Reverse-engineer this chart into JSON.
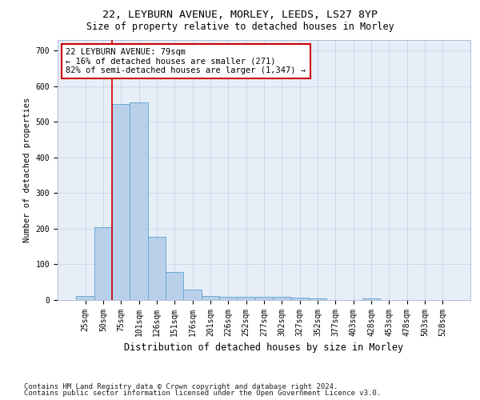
{
  "title1": "22, LEYBURN AVENUE, MORLEY, LEEDS, LS27 8YP",
  "title2": "Size of property relative to detached houses in Morley",
  "xlabel": "Distribution of detached houses by size in Morley",
  "ylabel": "Number of detached properties",
  "categories": [
    "25sqm",
    "50sqm",
    "75sqm",
    "101sqm",
    "126sqm",
    "151sqm",
    "176sqm",
    "201sqm",
    "226sqm",
    "252sqm",
    "277sqm",
    "302sqm",
    "327sqm",
    "352sqm",
    "377sqm",
    "403sqm",
    "428sqm",
    "453sqm",
    "478sqm",
    "503sqm",
    "528sqm"
  ],
  "values": [
    12,
    205,
    550,
    555,
    178,
    78,
    30,
    12,
    10,
    8,
    10,
    10,
    7,
    5,
    0,
    0,
    5,
    0,
    0,
    0,
    0
  ],
  "bar_color": "#b8d0ea",
  "bar_edge_color": "#6aaad4",
  "vline_x_index": 1.5,
  "vline_color": "#cc0000",
  "annotation_text": "22 LEYBURN AVENUE: 79sqm\n← 16% of detached houses are smaller (271)\n82% of semi-detached houses are larger (1,347) →",
  "annotation_box_color": "#ffffff",
  "annotation_box_edge_color": "#cc0000",
  "ylim": [
    0,
    730
  ],
  "yticks": [
    0,
    100,
    200,
    300,
    400,
    500,
    600,
    700
  ],
  "background_color": "#e8eef8",
  "footer1": "Contains HM Land Registry data © Crown copyright and database right 2024.",
  "footer2": "Contains public sector information licensed under the Open Government Licence v3.0.",
  "title1_fontsize": 9.5,
  "title2_fontsize": 8.5,
  "xlabel_fontsize": 8.5,
  "ylabel_fontsize": 7.5,
  "tick_fontsize": 7,
  "annotation_fontsize": 7.5,
  "footer_fontsize": 6.5
}
